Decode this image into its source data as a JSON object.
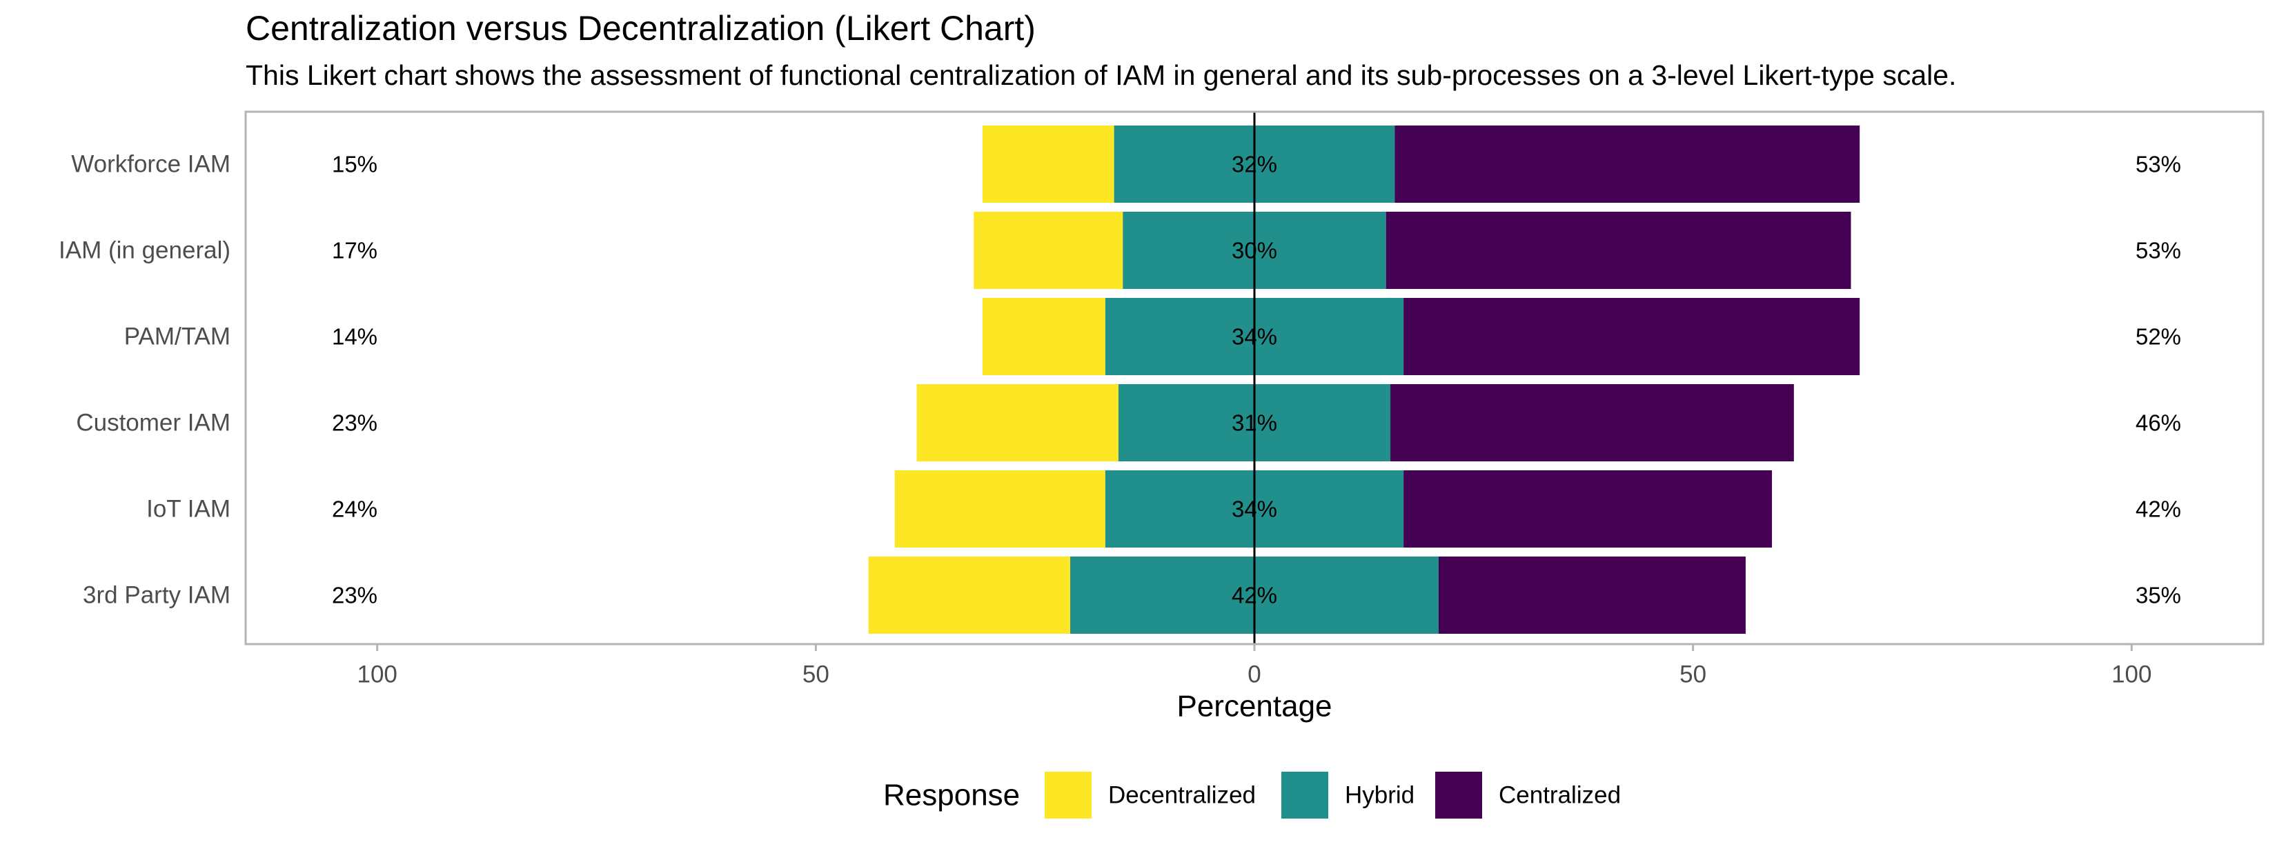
{
  "colors": {
    "decentralized": "#FDE725",
    "hybrid": "#21908C",
    "centralized": "#440154",
    "panel_border": "#B3B3B3"
  },
  "chart_data": {
    "type": "bar",
    "orientation": "horizontal-diverging",
    "title": "Centralization versus Decentralization (Likert Chart)",
    "subtitle": "This Likert chart shows the assessment of functional centralization of IAM in general and its sub-processes on a 3-level Likert-type scale.",
    "xlabel": "Percentage",
    "xlim": [
      -115,
      115
    ],
    "x_ticks": [
      -100,
      -50,
      0,
      50,
      100
    ],
    "x_tick_labels": [
      "100",
      "50",
      "0",
      "50",
      "100"
    ],
    "categories": [
      "Workforce IAM",
      "IAM (in general)",
      "PAM/TAM",
      "Customer IAM",
      "IoT IAM",
      "3rd Party IAM"
    ],
    "series": [
      {
        "name": "Decentralized",
        "values": [
          15,
          17,
          14,
          23,
          24,
          23
        ]
      },
      {
        "name": "Hybrid",
        "values": [
          32,
          30,
          34,
          31,
          34,
          42
        ]
      },
      {
        "name": "Centralized",
        "values": [
          53,
          53,
          52,
          46,
          42,
          35
        ]
      }
    ],
    "left_labels": [
      "15%",
      "17%",
      "14%",
      "23%",
      "24%",
      "23%"
    ],
    "center_labels": [
      "32%",
      "30%",
      "34%",
      "31%",
      "34%",
      "42%"
    ],
    "right_labels": [
      "53%",
      "53%",
      "52%",
      "46%",
      "42%",
      "35%"
    ],
    "legend": {
      "title": "Response",
      "position": "bottom",
      "items": [
        "Decentralized",
        "Hybrid",
        "Centralized"
      ]
    },
    "grid": false
  }
}
